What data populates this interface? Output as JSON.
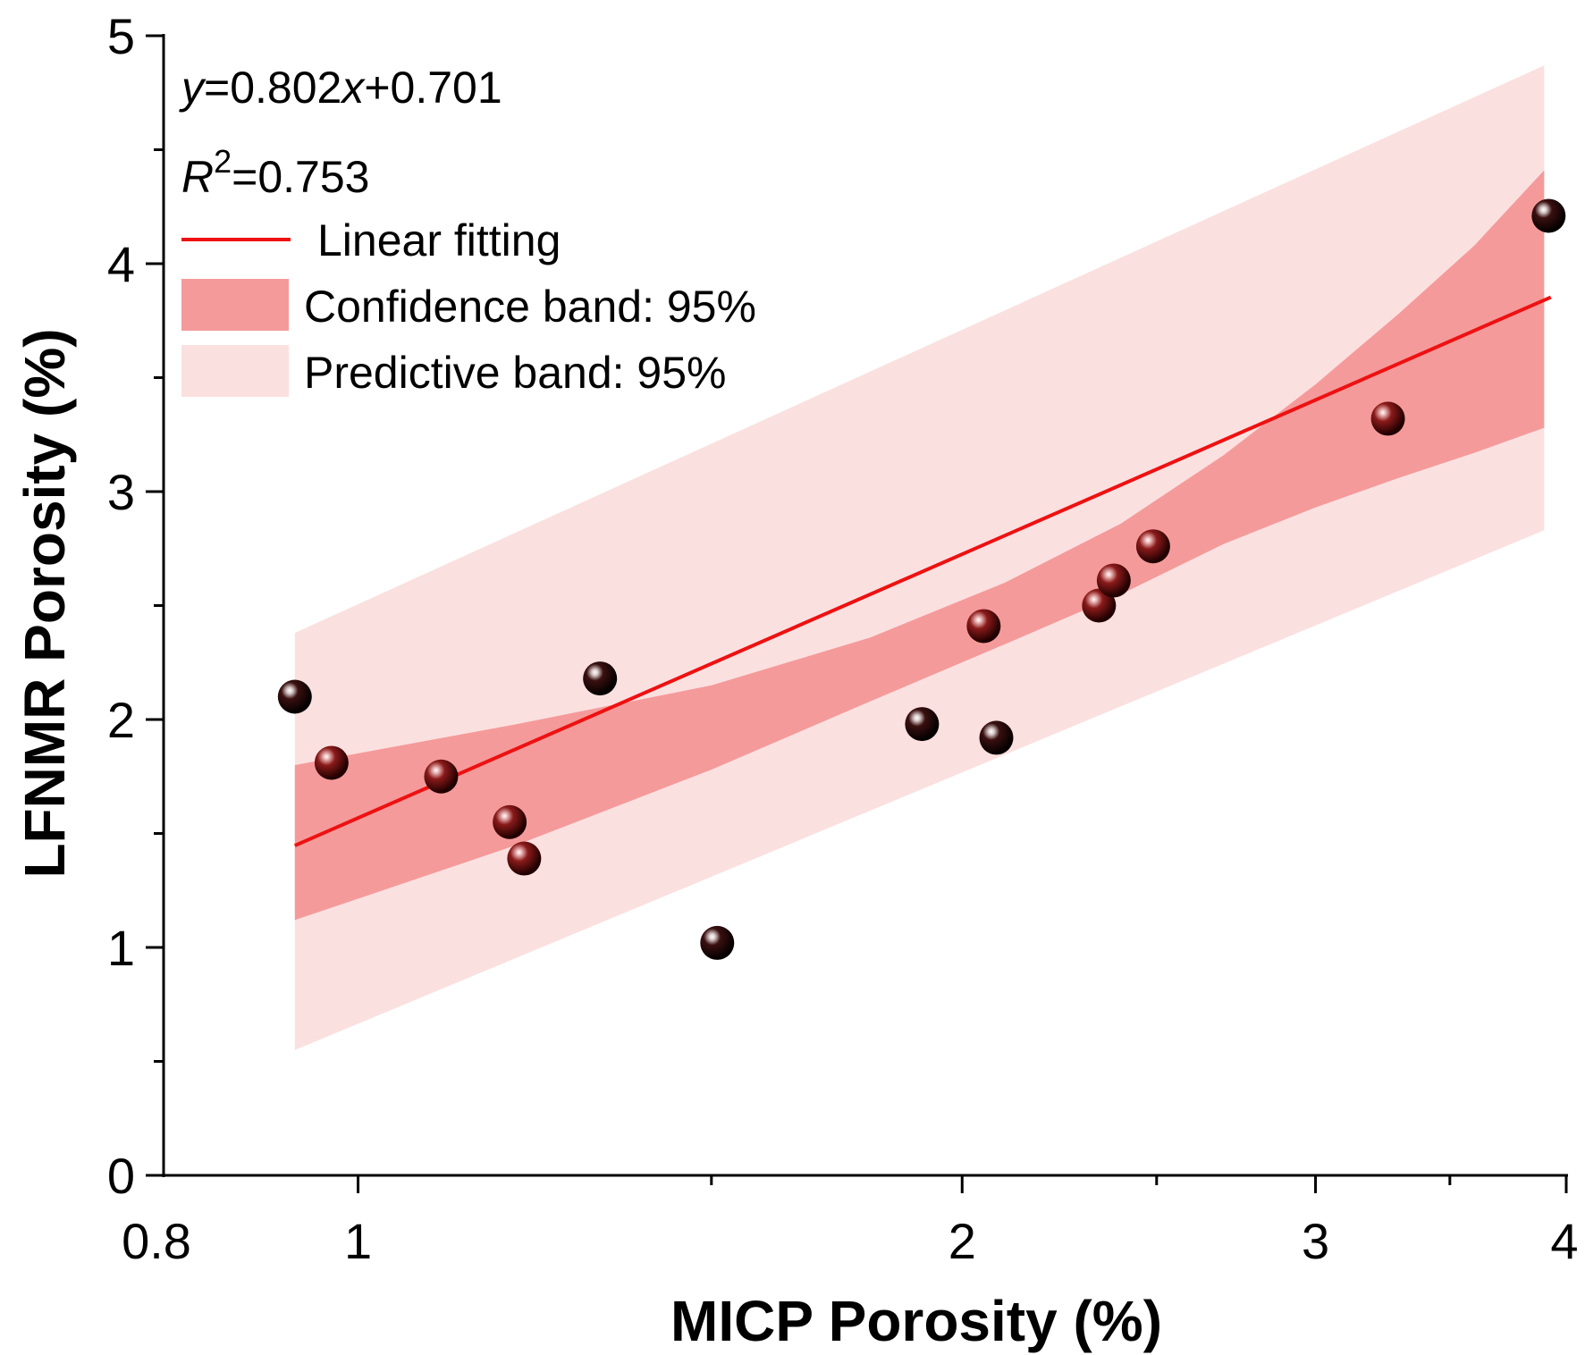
{
  "chart_data": {
    "type": "scatter",
    "xlabel": "MICP Porosity (%)",
    "ylabel": "LFNMR Porosity (%)",
    "xlim": [
      0.8,
      4
    ],
    "ylim": [
      0,
      5
    ],
    "x_ticks": [
      "0.8",
      "1",
      "2",
      "3",
      "4"
    ],
    "y_ticks": [
      "0",
      "1",
      "2",
      "3",
      "4",
      "5"
    ],
    "annotations": {
      "equation_y": "y",
      "equation_rest": "=0.802",
      "equation_x": "x",
      "equation_tail": "+0.701",
      "r2_r": "R",
      "r2_sup": "2",
      "r2_value": "=0.753"
    },
    "legend": {
      "placement": "top-left",
      "fit_label": "Linear fitting",
      "confidence_label": "Confidence band: 95%",
      "predictive_label": "Predictive band: 95%"
    },
    "colors": {
      "fit_line": "#ee1111",
      "confidence_band": "#f59a9a",
      "predictive_band": "#fbe0e0",
      "axis": "#000000"
    },
    "fit": {
      "slope": 0.802,
      "intercept": 0.701,
      "x_range": [
        0.93,
        3.93
      ]
    },
    "confidence_band": {
      "x": [
        0.93,
        1.2,
        1.5,
        1.8,
        2.1,
        2.4,
        2.7,
        3.0,
        3.3,
        3.6,
        3.9
      ],
      "lower": [
        1.12,
        1.45,
        1.78,
        2.08,
        2.33,
        2.55,
        2.77,
        2.93,
        3.06,
        3.17,
        3.28
      ],
      "upper": [
        1.8,
        1.98,
        2.15,
        2.36,
        2.6,
        2.86,
        3.16,
        3.47,
        3.78,
        4.08,
        4.41
      ]
    },
    "predictive_band": {
      "x": [
        0.93,
        3.9
      ],
      "lower": [
        0.55,
        2.83
      ],
      "upper": [
        2.38,
        4.87
      ]
    },
    "series": [
      {
        "points": [
          {
            "x": 0.93,
            "y": 2.1,
            "shade": "dark"
          },
          {
            "x": 0.97,
            "y": 1.81,
            "shade": "red"
          },
          {
            "x": 1.1,
            "y": 1.75,
            "shade": "red"
          },
          {
            "x": 1.19,
            "y": 1.55,
            "shade": "red"
          },
          {
            "x": 1.21,
            "y": 1.39,
            "shade": "red"
          },
          {
            "x": 1.32,
            "y": 2.18,
            "shade": "dark"
          },
          {
            "x": 1.51,
            "y": 1.02,
            "shade": "dark"
          },
          {
            "x": 1.91,
            "y": 1.98,
            "shade": "dark"
          },
          {
            "x": 2.05,
            "y": 2.41,
            "shade": "red"
          },
          {
            "x": 2.08,
            "y": 1.92,
            "shade": "dark"
          },
          {
            "x": 2.34,
            "y": 2.5,
            "shade": "red"
          },
          {
            "x": 2.38,
            "y": 2.61,
            "shade": "red"
          },
          {
            "x": 2.49,
            "y": 2.76,
            "shade": "red"
          },
          {
            "x": 3.26,
            "y": 3.32,
            "shade": "red"
          },
          {
            "x": 3.92,
            "y": 4.21,
            "shade": "dark"
          }
        ]
      }
    ]
  }
}
